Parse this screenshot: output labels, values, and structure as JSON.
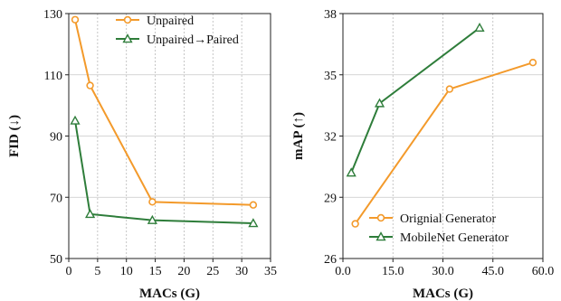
{
  "chart_data": [
    {
      "type": "line",
      "xlabel": "MACs (G)",
      "ylabel": "FID (↓)",
      "xlim": [
        0,
        35
      ],
      "ylim": [
        50,
        130
      ],
      "xticks": [
        "0",
        "5",
        "10",
        "15",
        "20",
        "25",
        "30",
        "35"
      ],
      "yticks": [
        "50",
        "70",
        "90",
        "110",
        "130"
      ],
      "grid": "vertical dotted, horizontal solid",
      "legend": "top-right",
      "series": [
        {
          "name": "Unpaired",
          "color": "#f39a2b",
          "marker": "circle",
          "x": [
            1.1,
            3.7,
            14.5,
            32.0
          ],
          "y": [
            128,
            106.5,
            68.5,
            67.5
          ]
        },
        {
          "name": "Unpaired→Paired",
          "color": "#2e7d3a",
          "marker": "triangle",
          "x": [
            1.1,
            3.7,
            14.5,
            32.0
          ],
          "y": [
            95,
            64.5,
            62.5,
            61.5
          ]
        }
      ]
    },
    {
      "type": "line",
      "xlabel": "MACs (G)",
      "ylabel": "mAP (↑)",
      "xlim": [
        0,
        60
      ],
      "ylim": [
        26,
        38
      ],
      "xticks": [
        "0.0",
        "15.0",
        "30.0",
        "45.0",
        "60.0"
      ],
      "yticks": [
        "26",
        "29",
        "32",
        "35",
        "38"
      ],
      "grid": "vertical dotted, horizontal solid",
      "legend": "bottom-right",
      "series": [
        {
          "name": "Orignial Generator",
          "color": "#f39a2b",
          "marker": "circle",
          "x": [
            3.7,
            32.0,
            57.0
          ],
          "y": [
            27.7,
            34.3,
            35.6
          ]
        },
        {
          "name": "MobileNet Generator",
          "color": "#2e7d3a",
          "marker": "triangle",
          "x": [
            2.5,
            11.0,
            41.0
          ],
          "y": [
            30.2,
            33.6,
            37.3
          ]
        }
      ]
    }
  ]
}
